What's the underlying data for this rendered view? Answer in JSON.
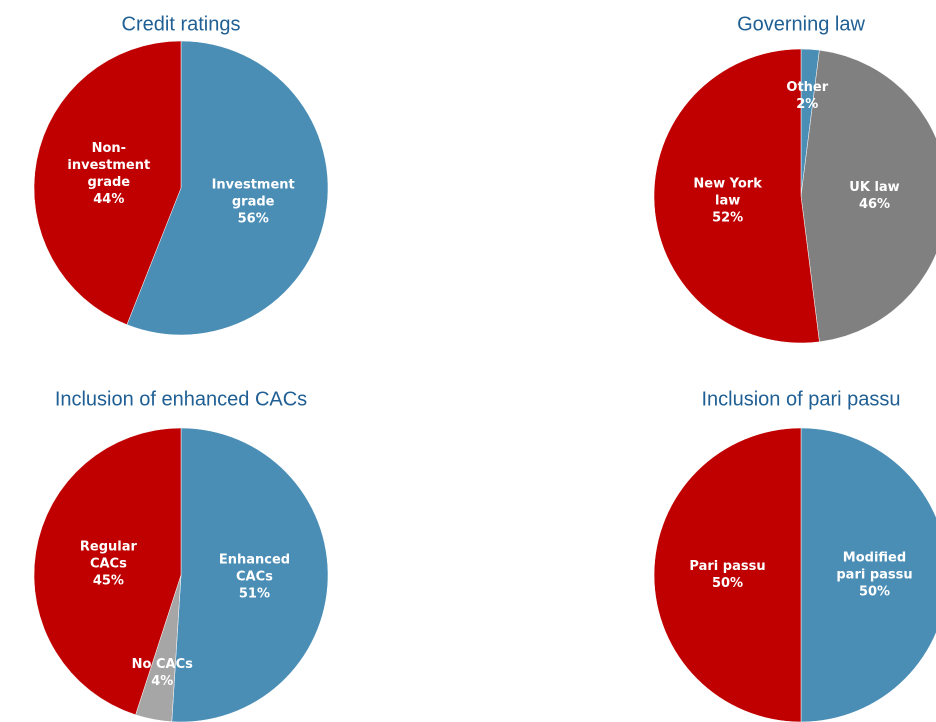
{
  "chart_data": [
    {
      "type": "pie",
      "title": "Credit ratings",
      "categories": [
        "Investment grade",
        "Non-investment grade"
      ],
      "values": [
        56,
        44
      ],
      "value_labels": [
        "56%",
        "44%"
      ],
      "colors": [
        "#4a8db5",
        "#c00000"
      ]
    },
    {
      "type": "pie",
      "title": "Governing law",
      "categories": [
        "Other",
        "UK law",
        "New York law"
      ],
      "values": [
        2,
        46,
        52
      ],
      "value_labels": [
        "2%",
        "46%",
        "52%"
      ],
      "colors": [
        "#4a8db5",
        "#808080",
        "#c00000"
      ]
    },
    {
      "type": "pie",
      "title": "Inclusion of enhanced CACs",
      "categories": [
        "Enhanced CACs",
        "No CACs",
        "Regular CACs"
      ],
      "values": [
        51,
        4,
        45
      ],
      "value_labels": [
        "51%",
        "4%",
        "45%"
      ],
      "colors": [
        "#4a8db5",
        "#a6a6a6",
        "#c00000"
      ]
    },
    {
      "type": "pie",
      "title": "Inclusion of pari passu",
      "categories": [
        "Modified pari passu",
        "Pari passu"
      ],
      "values": [
        50,
        50
      ],
      "value_labels": [
        "50%",
        "50%"
      ],
      "colors": [
        "#4a8db5",
        "#c00000"
      ]
    }
  ]
}
